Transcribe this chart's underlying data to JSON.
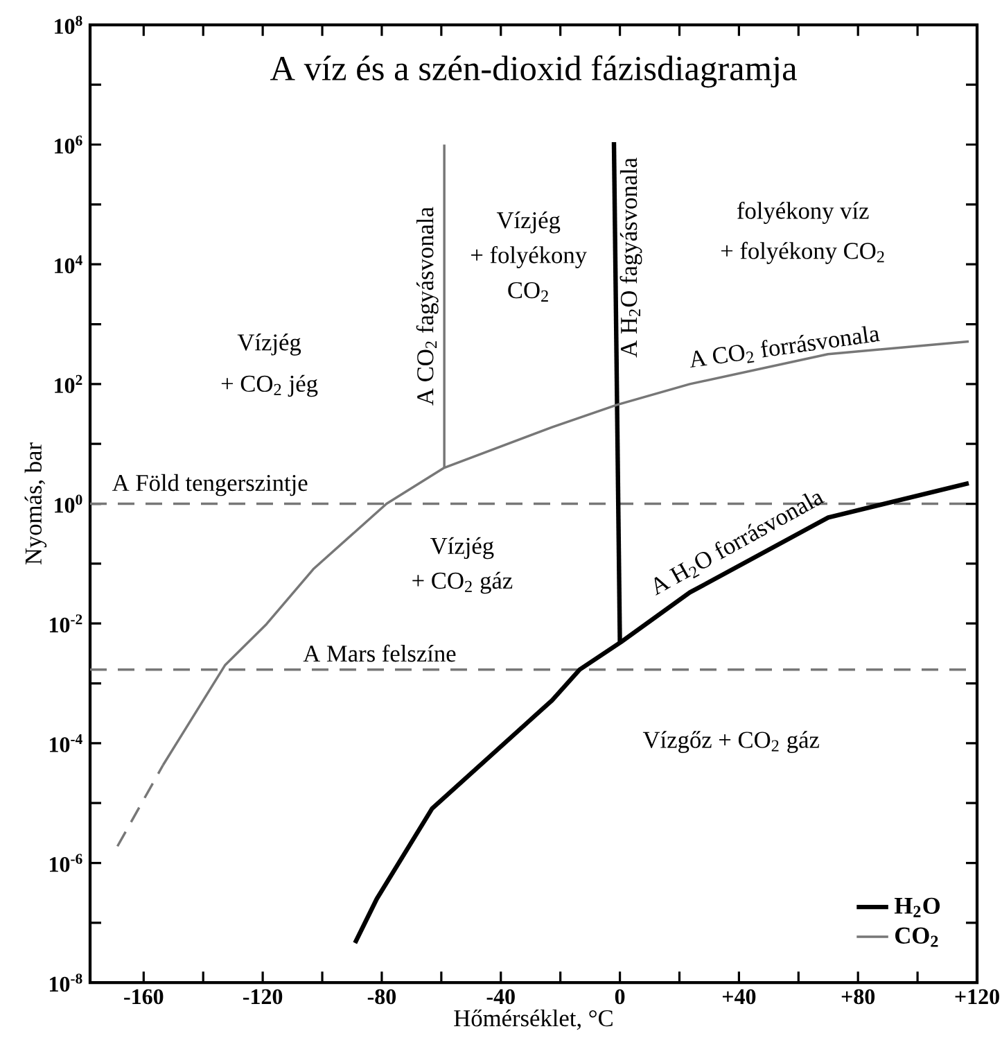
{
  "chart_data": {
    "type": "line",
    "title": "A víz és a szén-dioxid fázisdiagramja",
    "xlabel": "Hőmérséklet, °C",
    "ylabel": "Nyomás, bar",
    "xlim": [
      -178,
      120
    ],
    "ylim": [
      1e-08,
      100000000.0
    ],
    "log": "y",
    "marker": "none",
    "legend": "bottom right",
    "xticks": [
      {
        "value": -160,
        "label": "-160"
      },
      {
        "value": -140,
        "label": null
      },
      {
        "value": -120,
        "label": "-120"
      },
      {
        "value": -100,
        "label": null
      },
      {
        "value": -80,
        "label": "-80"
      },
      {
        "value": -60,
        "label": null
      },
      {
        "value": -40,
        "label": "-40"
      },
      {
        "value": -20,
        "label": null
      },
      {
        "value": 0,
        "label": "0"
      },
      {
        "value": 20,
        "label": null
      },
      {
        "value": 40,
        "label": "+40"
      },
      {
        "value": 60,
        "label": null
      },
      {
        "value": 80,
        "label": "+80"
      },
      {
        "value": 100,
        "label": null
      },
      {
        "value": 120,
        "label": "+120"
      }
    ],
    "yticks": [
      {
        "value": 1e-08,
        "label": "10$^{-8}$"
      },
      {
        "value": 1e-07,
        "label": null
      },
      {
        "value": 1e-06,
        "label": "10$^{-6}$"
      },
      {
        "value": 1e-05,
        "label": null
      },
      {
        "value": 0.0001,
        "label": "10$^{-4}$"
      },
      {
        "value": 0.001,
        "label": null
      },
      {
        "value": 0.01,
        "label": "10$^{-2}$"
      },
      {
        "value": 0.1,
        "label": null
      },
      {
        "value": 1,
        "label": "10$^{0}$"
      },
      {
        "value": 10,
        "label": null
      },
      {
        "value": 100,
        "label": "10$^{2}$"
      },
      {
        "value": 1000,
        "label": null
      },
      {
        "value": 10000.0,
        "label": "10$^{4}$"
      },
      {
        "value": 100000.0,
        "label": null
      },
      {
        "value": 1000000.0,
        "label": "10$^{6}$"
      },
      {
        "value": 10000000.0,
        "label": null
      },
      {
        "value": 100000000.0,
        "label": "10$^{8}$"
      }
    ],
    "series": [
      {
        "name": "H$_{2}$O",
        "color": "#000000",
        "x": [
          -89,
          -81.7,
          -63.1,
          -22.8,
          -13.5,
          0.4,
          23.5,
          70,
          117.2
        ],
        "values": [
          4.6e-08,
          2.5e-07,
          8.1e-06,
          0.00052,
          0.0017,
          0.0049,
          0.033,
          0.59,
          2.2
        ]
      },
      {
        "color": "#000000",
        "x": [
          0,
          -2
        ],
        "values": [
          0.0049,
          1100000.0
        ]
      },
      {
        "name": "CO$_{2}$",
        "color": "#777777",
        "x": [
          -153.5,
          -132.7,
          -118.7,
          -103,
          -78.4,
          -59,
          -22.8,
          -1,
          23.5,
          69.9,
          117.2
        ],
        "values": [
          4.3e-05,
          0.002,
          0.0098,
          0.081,
          1.0,
          4.0,
          19,
          45,
          100,
          316,
          513
        ]
      },
      {
        "color": "#777777",
        "line_style": "dashed",
        "x": [
          -168.8,
          -153.5
        ],
        "values": [
          1.9e-06,
          4.3e-05
        ]
      },
      {
        "color": "#777777",
        "x": [
          -59,
          -59
        ],
        "values": [
          4.0,
          1000000.0
        ]
      }
    ],
    "ref_lines": [
      {
        "axis": "y",
        "value": 1,
        "label": "A Föld tengerszintje",
        "color": "#777777",
        "line_style": "dashed"
      },
      {
        "axis": "y",
        "value": 0.0017,
        "label": "A Mars felszíne",
        "color": "#777777",
        "line_style": "dashed"
      }
    ],
    "annotations": [
      "Vízjég",
      "+ CO$_{2}$ jég",
      "Vízjég",
      "+ folyékony",
      "CO$_{2}$",
      "folyékony víz",
      "+ folyékony CO$_{2}$",
      "Vízjég",
      "+ CO$_{2}$ gáz",
      "Vízgőz + CO$_{2}$ gáz",
      {
        "text": "A CO$_{2}$ fagyásvonala",
        "x": -59,
        "y": 2000
      },
      {
        "text": "A H$_{2}$O fagyásvonala",
        "x": -2,
        "y": 13000
      },
      {
        "text": "A CO$_{2}$ forrásvonala",
        "x": 56,
        "y": 220
      },
      {
        "text": "A H$_{2}$O forrásvonala",
        "x": 42,
        "y": 0.13
      }
    ]
  }
}
